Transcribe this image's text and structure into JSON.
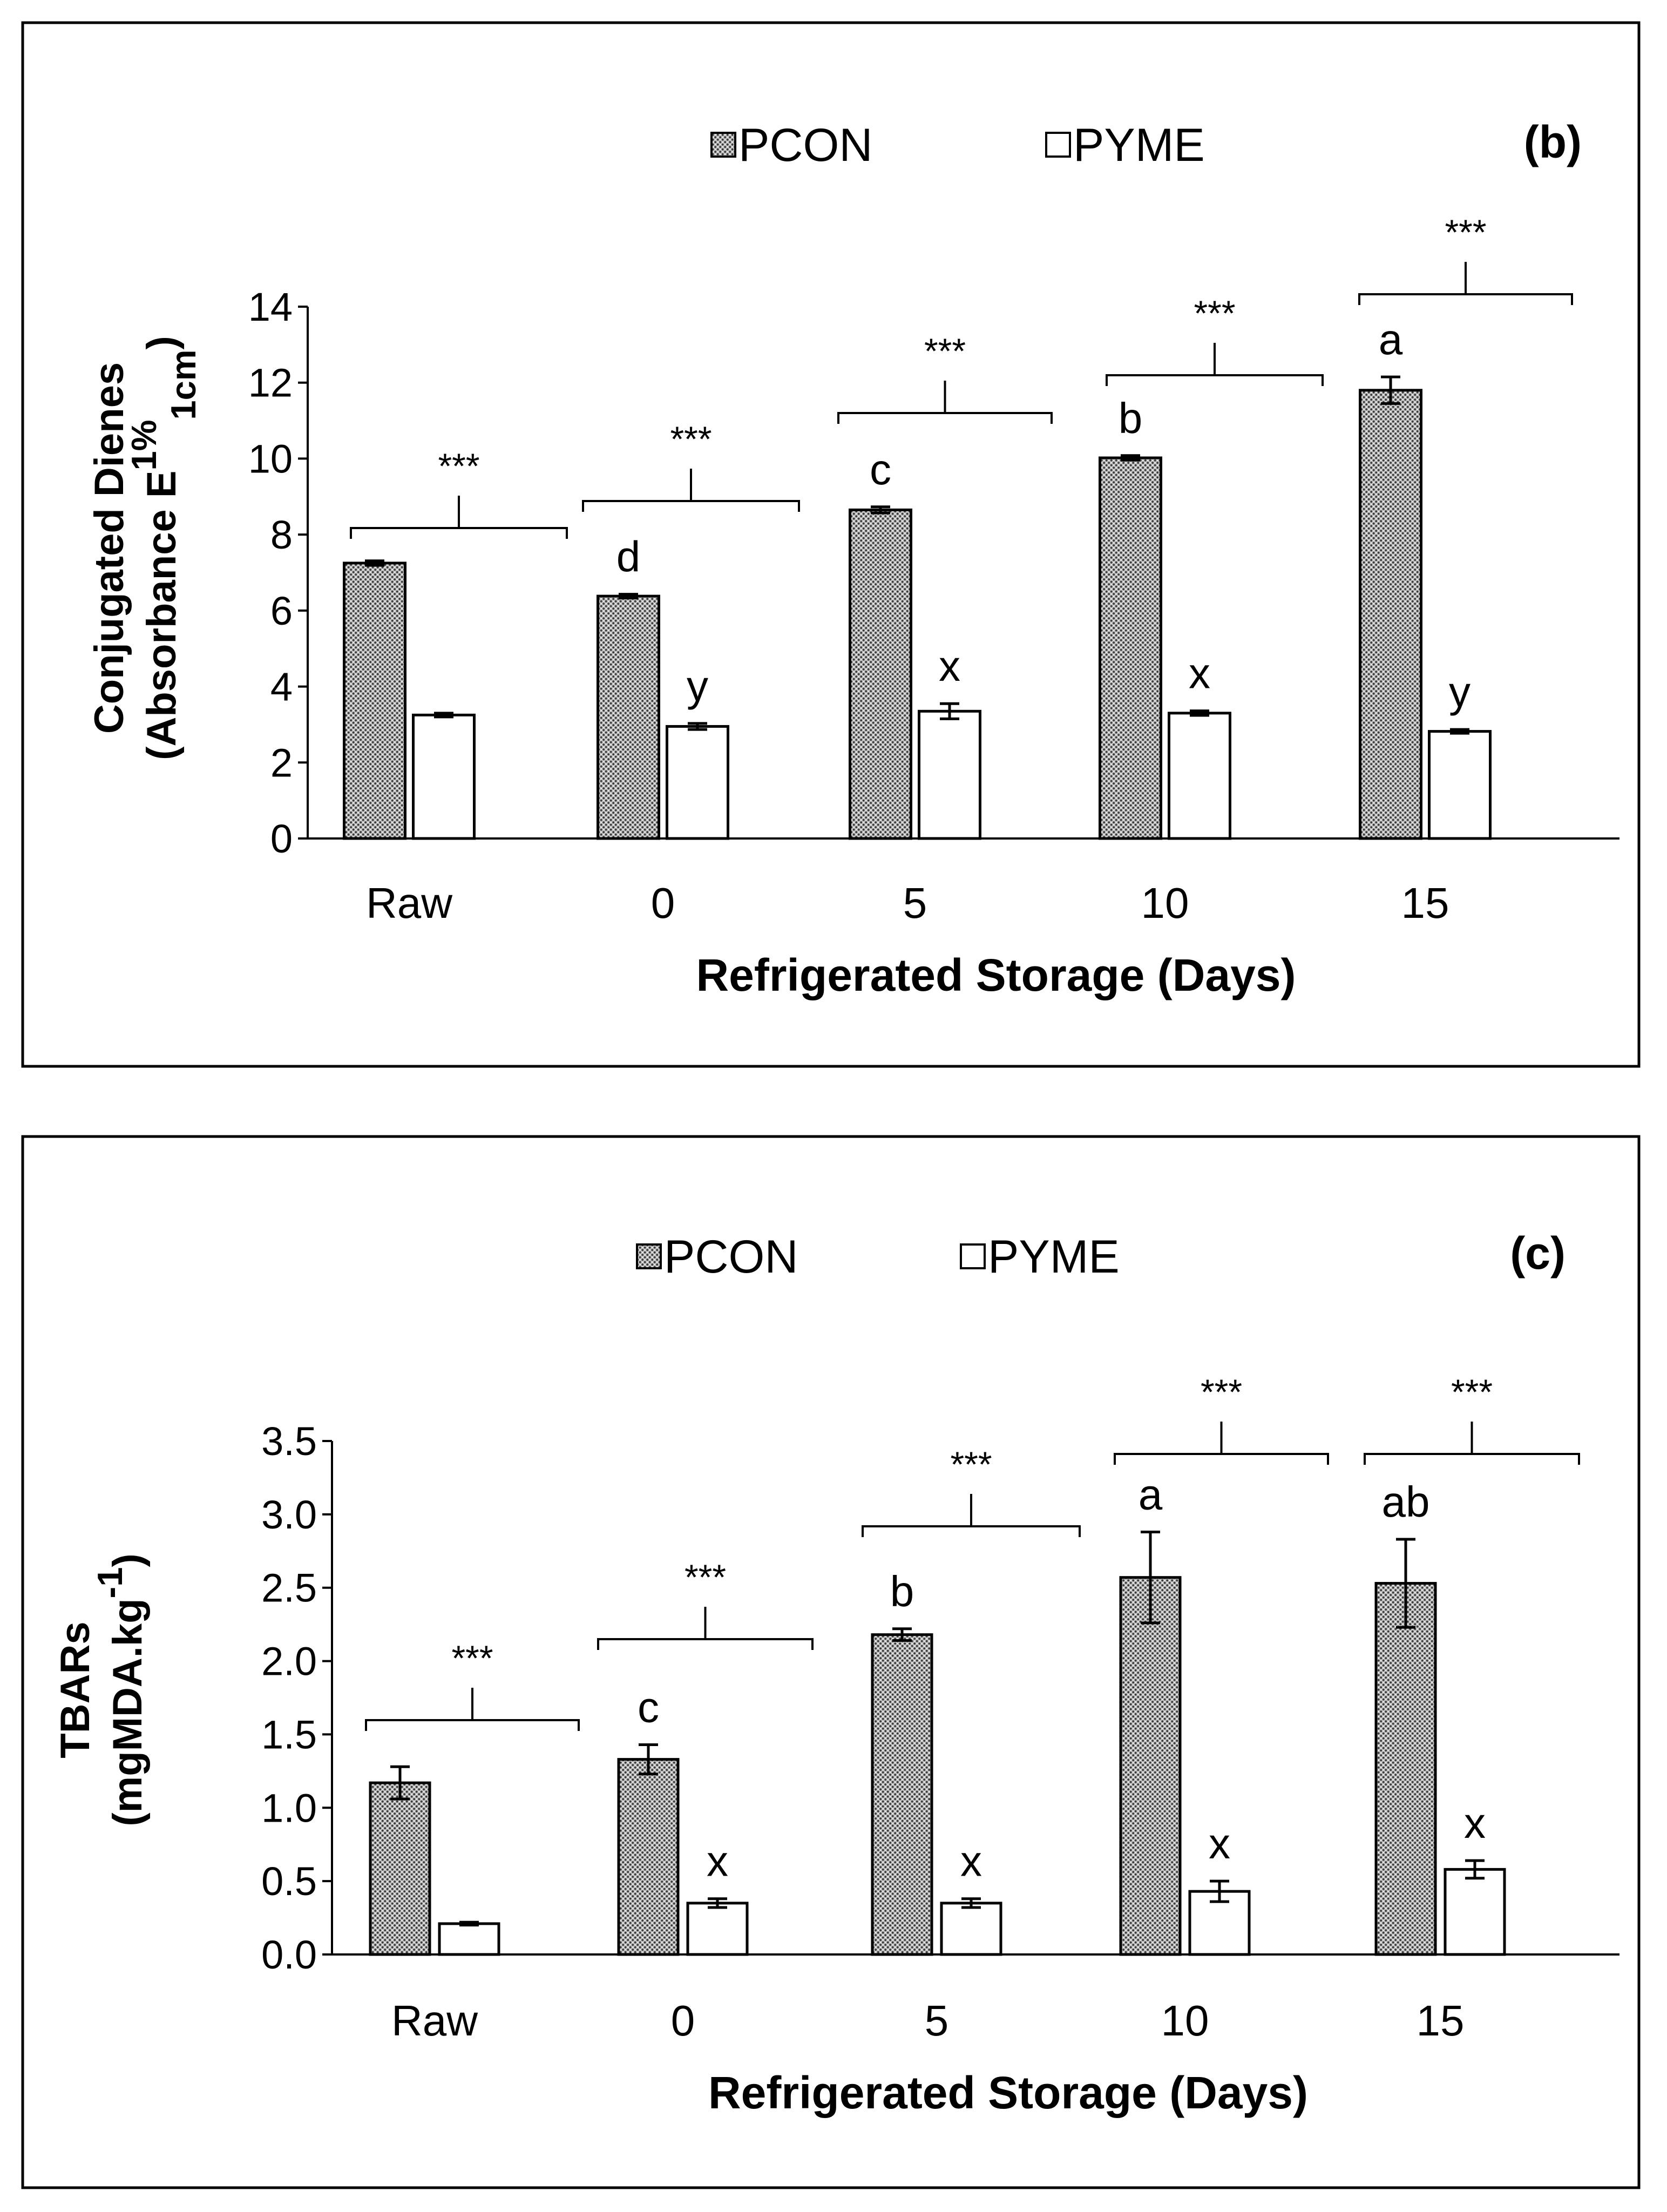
{
  "chart_data": [
    {
      "type": "bar",
      "panel_label": "(b)",
      "categories": [
        "Raw",
        "0",
        "5",
        "10",
        "15"
      ],
      "series": [
        {
          "name": "PCON",
          "values": [
            7.25,
            6.38,
            8.65,
            10.02,
            11.8
          ],
          "errors": [
            0.06,
            0.05,
            0.08,
            0.06,
            0.35
          ],
          "letters": [
            "",
            "d",
            "c",
            "b",
            "a"
          ]
        },
        {
          "name": "PYME",
          "values": [
            3.25,
            2.95,
            3.35,
            3.3,
            2.82
          ],
          "errors": [
            0.05,
            0.08,
            0.2,
            0.06,
            0.05
          ],
          "letters": [
            "",
            "y",
            "x",
            "x",
            "y"
          ]
        }
      ],
      "significance": [
        "***",
        "***",
        "***",
        "***",
        "***"
      ],
      "xlabel": "Refrigerated Storage (Days)",
      "ylabel_line1": "Conjugated Dienes",
      "ylabel_line2_prefix": "(Absorbance E",
      "ylabel_sup": "1%",
      "ylabel_sub": "1cm",
      "ylabel_suffix": ")",
      "ylim": [
        0,
        14
      ],
      "yticks": [
        0,
        2,
        4,
        6,
        8,
        10,
        12,
        14
      ],
      "ytick_labels": [
        "0",
        "2",
        "4",
        "6",
        "8",
        "10",
        "12",
        "14"
      ],
      "legend": [
        "PCON",
        "PYME"
      ]
    },
    {
      "type": "bar",
      "panel_label": "(c)",
      "categories": [
        "Raw",
        "0",
        "5",
        "10",
        "15"
      ],
      "series": [
        {
          "name": "PCON",
          "values": [
            1.17,
            1.33,
            2.18,
            2.57,
            2.53
          ],
          "errors": [
            0.11,
            0.1,
            0.04,
            0.31,
            0.3
          ],
          "letters": [
            "",
            "c",
            "b",
            "a",
            "ab"
          ]
        },
        {
          "name": "PYME",
          "values": [
            0.21,
            0.35,
            0.35,
            0.43,
            0.58
          ],
          "errors": [
            0.01,
            0.03,
            0.03,
            0.07,
            0.06
          ],
          "letters": [
            "",
            "x",
            "x",
            "x",
            "x"
          ]
        }
      ],
      "significance": [
        "***",
        "***",
        "***",
        "***",
        "***"
      ],
      "xlabel": "Refrigerated Storage (Days)",
      "ylabel_line1": "TBARs",
      "ylabel_line2_prefix": "(mgMDA.kg",
      "ylabel_sup": "-1",
      "ylabel_suffix": ")",
      "ylim": [
        0,
        3.5
      ],
      "yticks": [
        0,
        0.5,
        1,
        1.5,
        2,
        2.5,
        3,
        3.5
      ],
      "ytick_labels": [
        "0.0",
        "0.5",
        "1.0",
        "1.5",
        "2.0",
        "2.5",
        "3.0",
        "3.5"
      ],
      "legend": [
        "PCON",
        "PYME"
      ]
    }
  ]
}
